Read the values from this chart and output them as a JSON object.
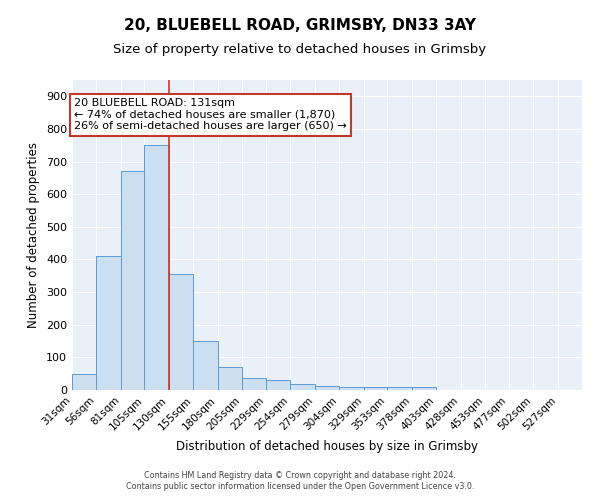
{
  "title1": "20, BLUEBELL ROAD, GRIMSBY, DN33 3AY",
  "title2": "Size of property relative to detached houses in Grimsby",
  "xlabel": "Distribution of detached houses by size in Grimsby",
  "ylabel": "Number of detached properties",
  "categories": [
    "31sqm",
    "56sqm",
    "81sqm",
    "105sqm",
    "130sqm",
    "155sqm",
    "180sqm",
    "205sqm",
    "229sqm",
    "254sqm",
    "279sqm",
    "304sqm",
    "329sqm",
    "353sqm",
    "378sqm",
    "403sqm",
    "428sqm",
    "453sqm",
    "477sqm",
    "502sqm",
    "527sqm"
  ],
  "bar_edges": [
    31,
    56,
    81,
    105,
    130,
    155,
    180,
    205,
    229,
    254,
    279,
    304,
    329,
    353,
    378,
    403,
    428,
    453,
    477,
    502,
    527
  ],
  "bar_heights": [
    50,
    410,
    670,
    750,
    355,
    150,
    70,
    37,
    30,
    18,
    12,
    8,
    8,
    8,
    8,
    0,
    0,
    0,
    0,
    0
  ],
  "bar_color": "#ccdff0",
  "bar_edge_color": "#5b9bd5",
  "vline_x": 130,
  "vline_color": "#c0392b",
  "annotation_line1": "20 BLUEBELL ROAD: 131sqm",
  "annotation_line2": "← 74% of detached houses are smaller (1,870)",
  "annotation_line3": "26% of semi-detached houses are larger (650) →",
  "annotation_box_color": "#c0392b",
  "ylim_max": 950,
  "yticks": [
    0,
    100,
    200,
    300,
    400,
    500,
    600,
    700,
    800,
    900
  ],
  "figure_bg": "#ffffff",
  "axes_bg": "#eaf0f8",
  "grid_color": "#ffffff",
  "footer1": "Contains HM Land Registry data © Crown copyright and database right 2024.",
  "footer2": "Contains public sector information licensed under the Open Government Licence v3.0."
}
